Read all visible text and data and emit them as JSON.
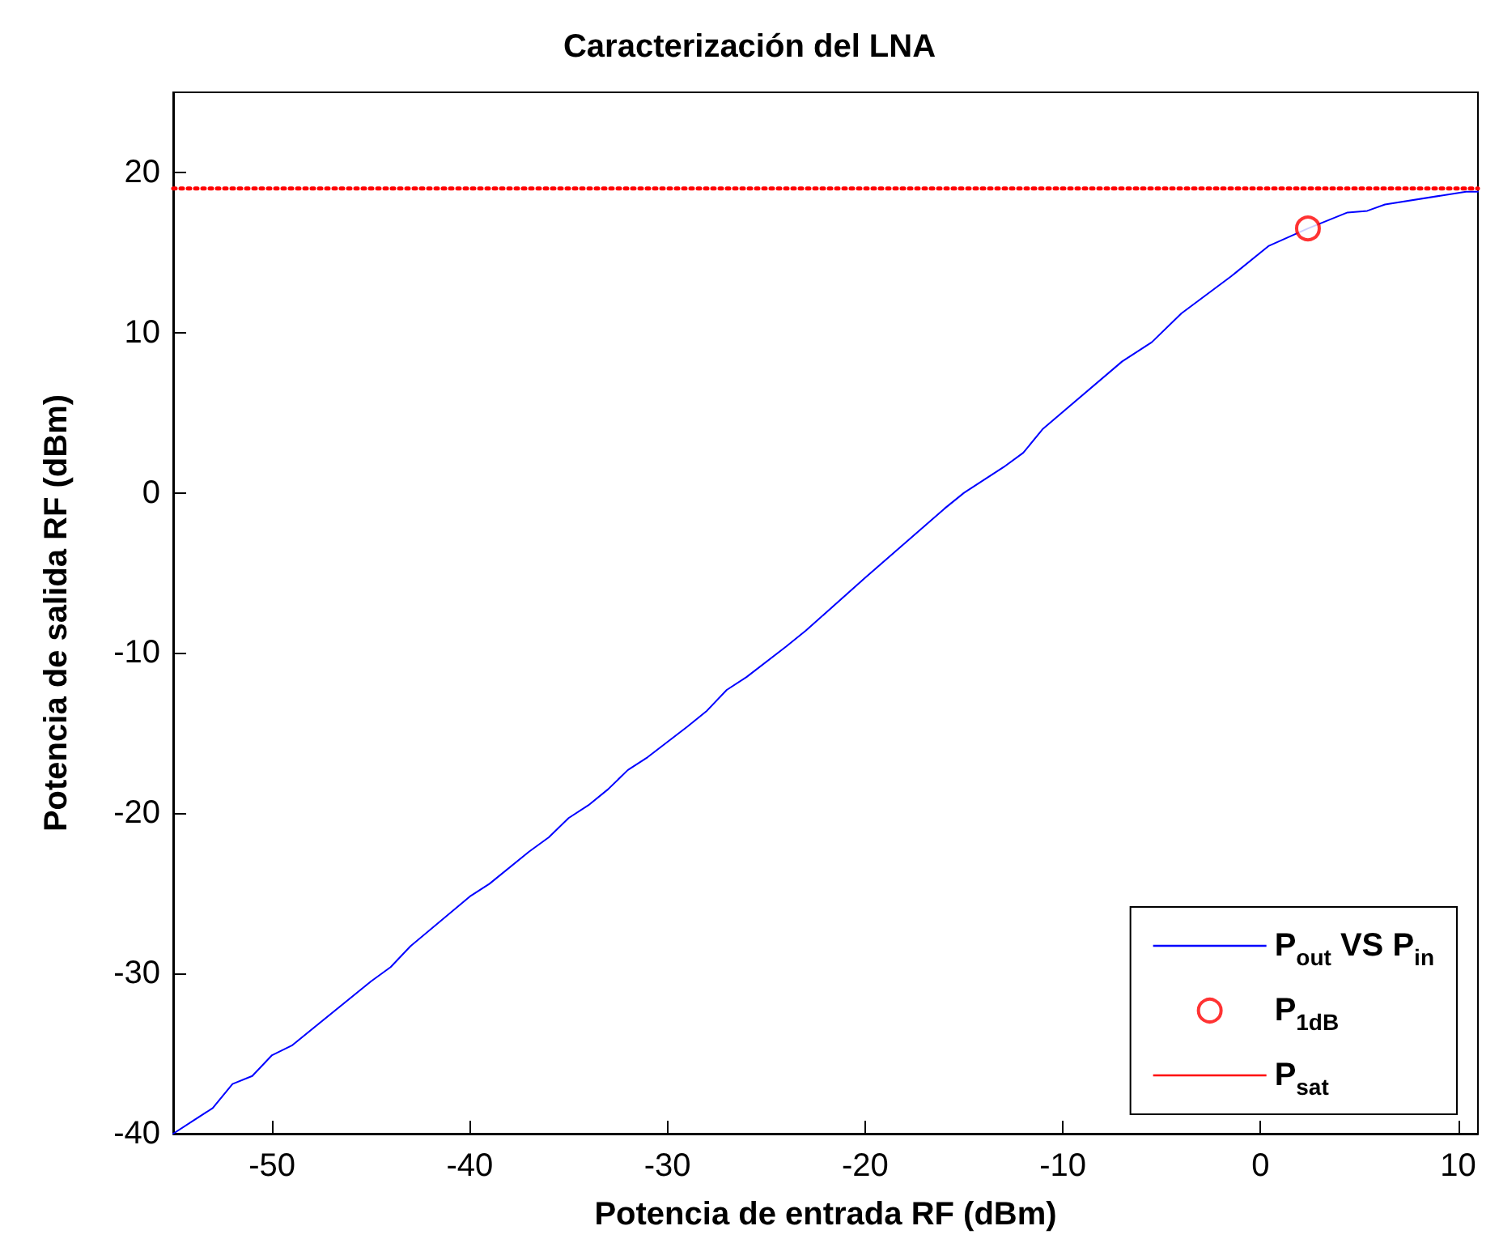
{
  "chart_data": {
    "type": "line",
    "title": "Caracterización del LNA",
    "xlabel": "Potencia de entrada RF (dBm)",
    "ylabel": "Potencia de salida RF (dBm)",
    "xlim": [
      -55,
      11
    ],
    "ylim": [
      -40,
      25
    ],
    "xticks": [
      -50,
      -40,
      -30,
      -20,
      -10,
      0,
      10
    ],
    "yticks": [
      -40,
      -30,
      -20,
      -10,
      0,
      10,
      20
    ],
    "grid": false,
    "legend": "bottom right",
    "series": [
      {
        "name": "P$_{out}$ VS P$_{in}$",
        "color": "#0000ff",
        "marker": "none",
        "line_style": "solid",
        "x": [
          -55,
          -54,
          -53,
          -52,
          -51,
          -50,
          -49,
          -45,
          -44,
          -43,
          -40,
          -39,
          -37,
          -36,
          -35,
          -34,
          -33,
          -32,
          -31,
          -29,
          -28,
          -27,
          -26,
          -24,
          -23,
          -20,
          -16,
          -15,
          -13,
          -12,
          -11,
          -7,
          -5.5,
          -4,
          -1.5,
          0.4,
          2.4,
          4.4,
          5.4,
          6.3,
          10.4,
          11
        ],
        "values": [
          -40,
          -39.2,
          -38.4,
          -36.9,
          -36.4,
          -35.1,
          -34.5,
          -30.5,
          -29.6,
          -28.3,
          -25.2,
          -24.4,
          -22.4,
          -21.5,
          -20.3,
          -19.5,
          -18.5,
          -17.3,
          -16.5,
          -14.6,
          -13.6,
          -12.3,
          -11.5,
          -9.6,
          -8.6,
          -5.3,
          -1,
          0,
          1.6,
          2.5,
          4,
          8.2,
          9.4,
          11.2,
          13.5,
          15.4,
          16.5,
          17.5,
          17.6,
          18,
          18.8,
          18.8
        ]
      },
      {
        "name": "P$_{1dB}$",
        "type": "scatter",
        "color": "#ff0000",
        "marker": "circle",
        "x": [
          2.4
        ],
        "values": [
          16.5
        ]
      },
      {
        "name": "P$_{sat}$",
        "color": "#ff0000",
        "marker": "none",
        "line_style": "dotted",
        "x": [
          -55,
          11
        ],
        "values": [
          19,
          19
        ]
      }
    ]
  }
}
